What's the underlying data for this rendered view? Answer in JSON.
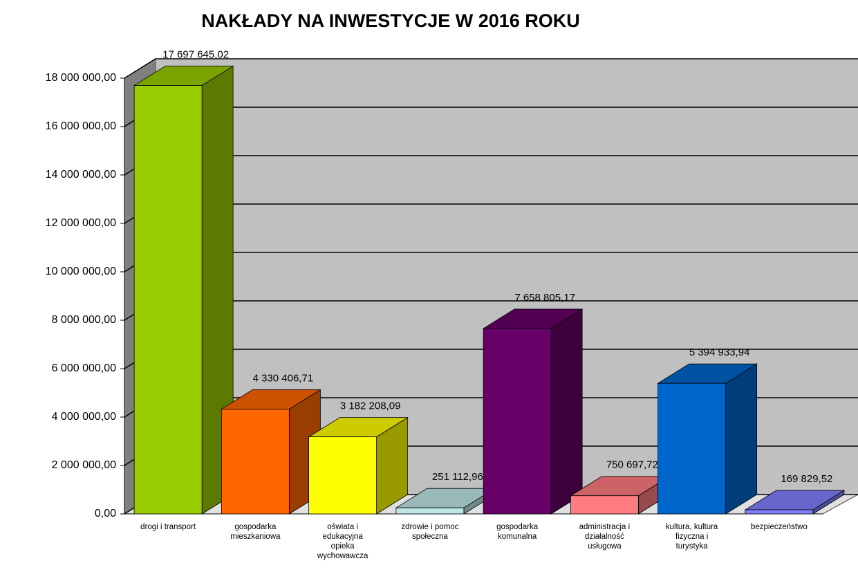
{
  "chart_data": {
    "type": "bar3d",
    "title": "NAKŁADY NA INWESTYCJE W 2016 ROKU",
    "categories": [
      "drogi i transport",
      "gospodarka mieszkaniowa",
      "oświata i edukacyjna opieka wychowawcza",
      "zdrowie i pomoc społeczna",
      "gospodarka komunalna",
      "administracja i działalność usługowa",
      "kultura, kultura fizyczna i turystyka",
      "bezpieczeństwo"
    ],
    "values": [
      17697645.02,
      4330406.71,
      3182208.09,
      251112.96,
      7658805.17,
      750697.72,
      5394933.94,
      169829.52
    ],
    "value_labels": [
      "17 697 645,02",
      "4 330 406,71",
      "3 182 208,09",
      "251 112,96",
      "7 658 805,17",
      "750 697,72",
      "5 394 933,94",
      "169 829,52"
    ],
    "colors": [
      "#99cc00",
      "#ff6600",
      "#ffff00",
      "#bfe6e6",
      "#660066",
      "#ff7c80",
      "#0066cc",
      "#8080ff"
    ],
    "ylim": [
      0,
      18000000
    ],
    "yticks": [
      {
        "value": 0,
        "label": "0,00"
      },
      {
        "value": 2000000,
        "label": "2 000 000,00"
      },
      {
        "value": 4000000,
        "label": "4 000 000,00"
      },
      {
        "value": 6000000,
        "label": "6 000 000,00"
      },
      {
        "value": 8000000,
        "label": "8 000 000,00"
      },
      {
        "value": 10000000,
        "label": "10 000 000,00"
      },
      {
        "value": 12000000,
        "label": "12 000 000,00"
      },
      {
        "value": 14000000,
        "label": "14 000 000,00"
      },
      {
        "value": 16000000,
        "label": "16 000 000,00"
      },
      {
        "value": 18000000,
        "label": "18 000 000,00"
      }
    ],
    "grid": true
  }
}
